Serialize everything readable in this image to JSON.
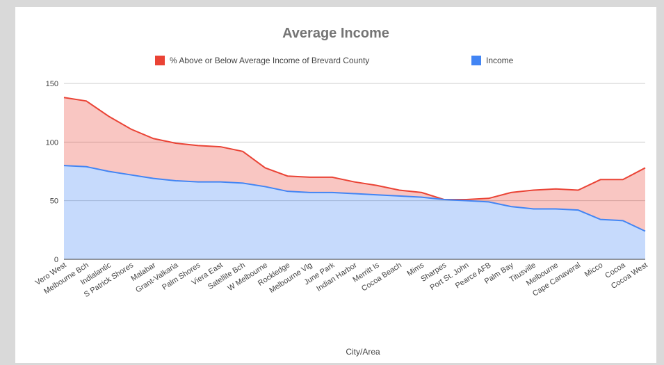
{
  "chart_data": {
    "type": "area",
    "stacked": true,
    "title": "Average Income",
    "xlabel": "City/Area",
    "ylabel": "",
    "ylim": [
      0,
      150
    ],
    "yticks": [
      0,
      50,
      100,
      150
    ],
    "grid": true,
    "legend_position": "top",
    "categories": [
      "Vero West",
      "Melbourne Bch",
      "Indialantic",
      "S Patrick Shores",
      "Malabar",
      "Grant-Valkaria",
      "Palm Shores",
      "Viera East",
      "Satellite Bch",
      "W Melbourne",
      "Rockledge",
      "Melbourne Vlg",
      "June Park",
      "Indian Harbor",
      "Merritt Is",
      "Cocoa Beach",
      "Mims",
      "Sharpes",
      "Port St. John",
      "Pearce AFB",
      "Palm Bay",
      "Titusville",
      "Melbourne",
      "Cape Canaveral",
      "Micco",
      "Cocoa",
      "Cocoa West"
    ],
    "series": [
      {
        "name": "Income",
        "color": "#4285f4",
        "values": [
          80,
          79,
          75,
          72,
          69,
          67,
          66,
          66,
          65,
          62,
          58,
          57,
          57,
          56,
          55,
          54,
          53,
          51,
          50,
          49,
          45,
          43,
          43,
          42,
          34,
          33,
          24
        ]
      },
      {
        "name": "% Above or Below Average Income of Brevard County",
        "color": "#ea4335",
        "values": [
          58,
          56,
          47,
          39,
          34,
          32,
          31,
          30,
          27,
          16,
          13,
          13,
          13,
          10,
          8,
          5,
          4,
          0,
          1,
          3,
          12,
          16,
          17,
          17,
          34,
          35,
          54
        ]
      }
    ]
  }
}
